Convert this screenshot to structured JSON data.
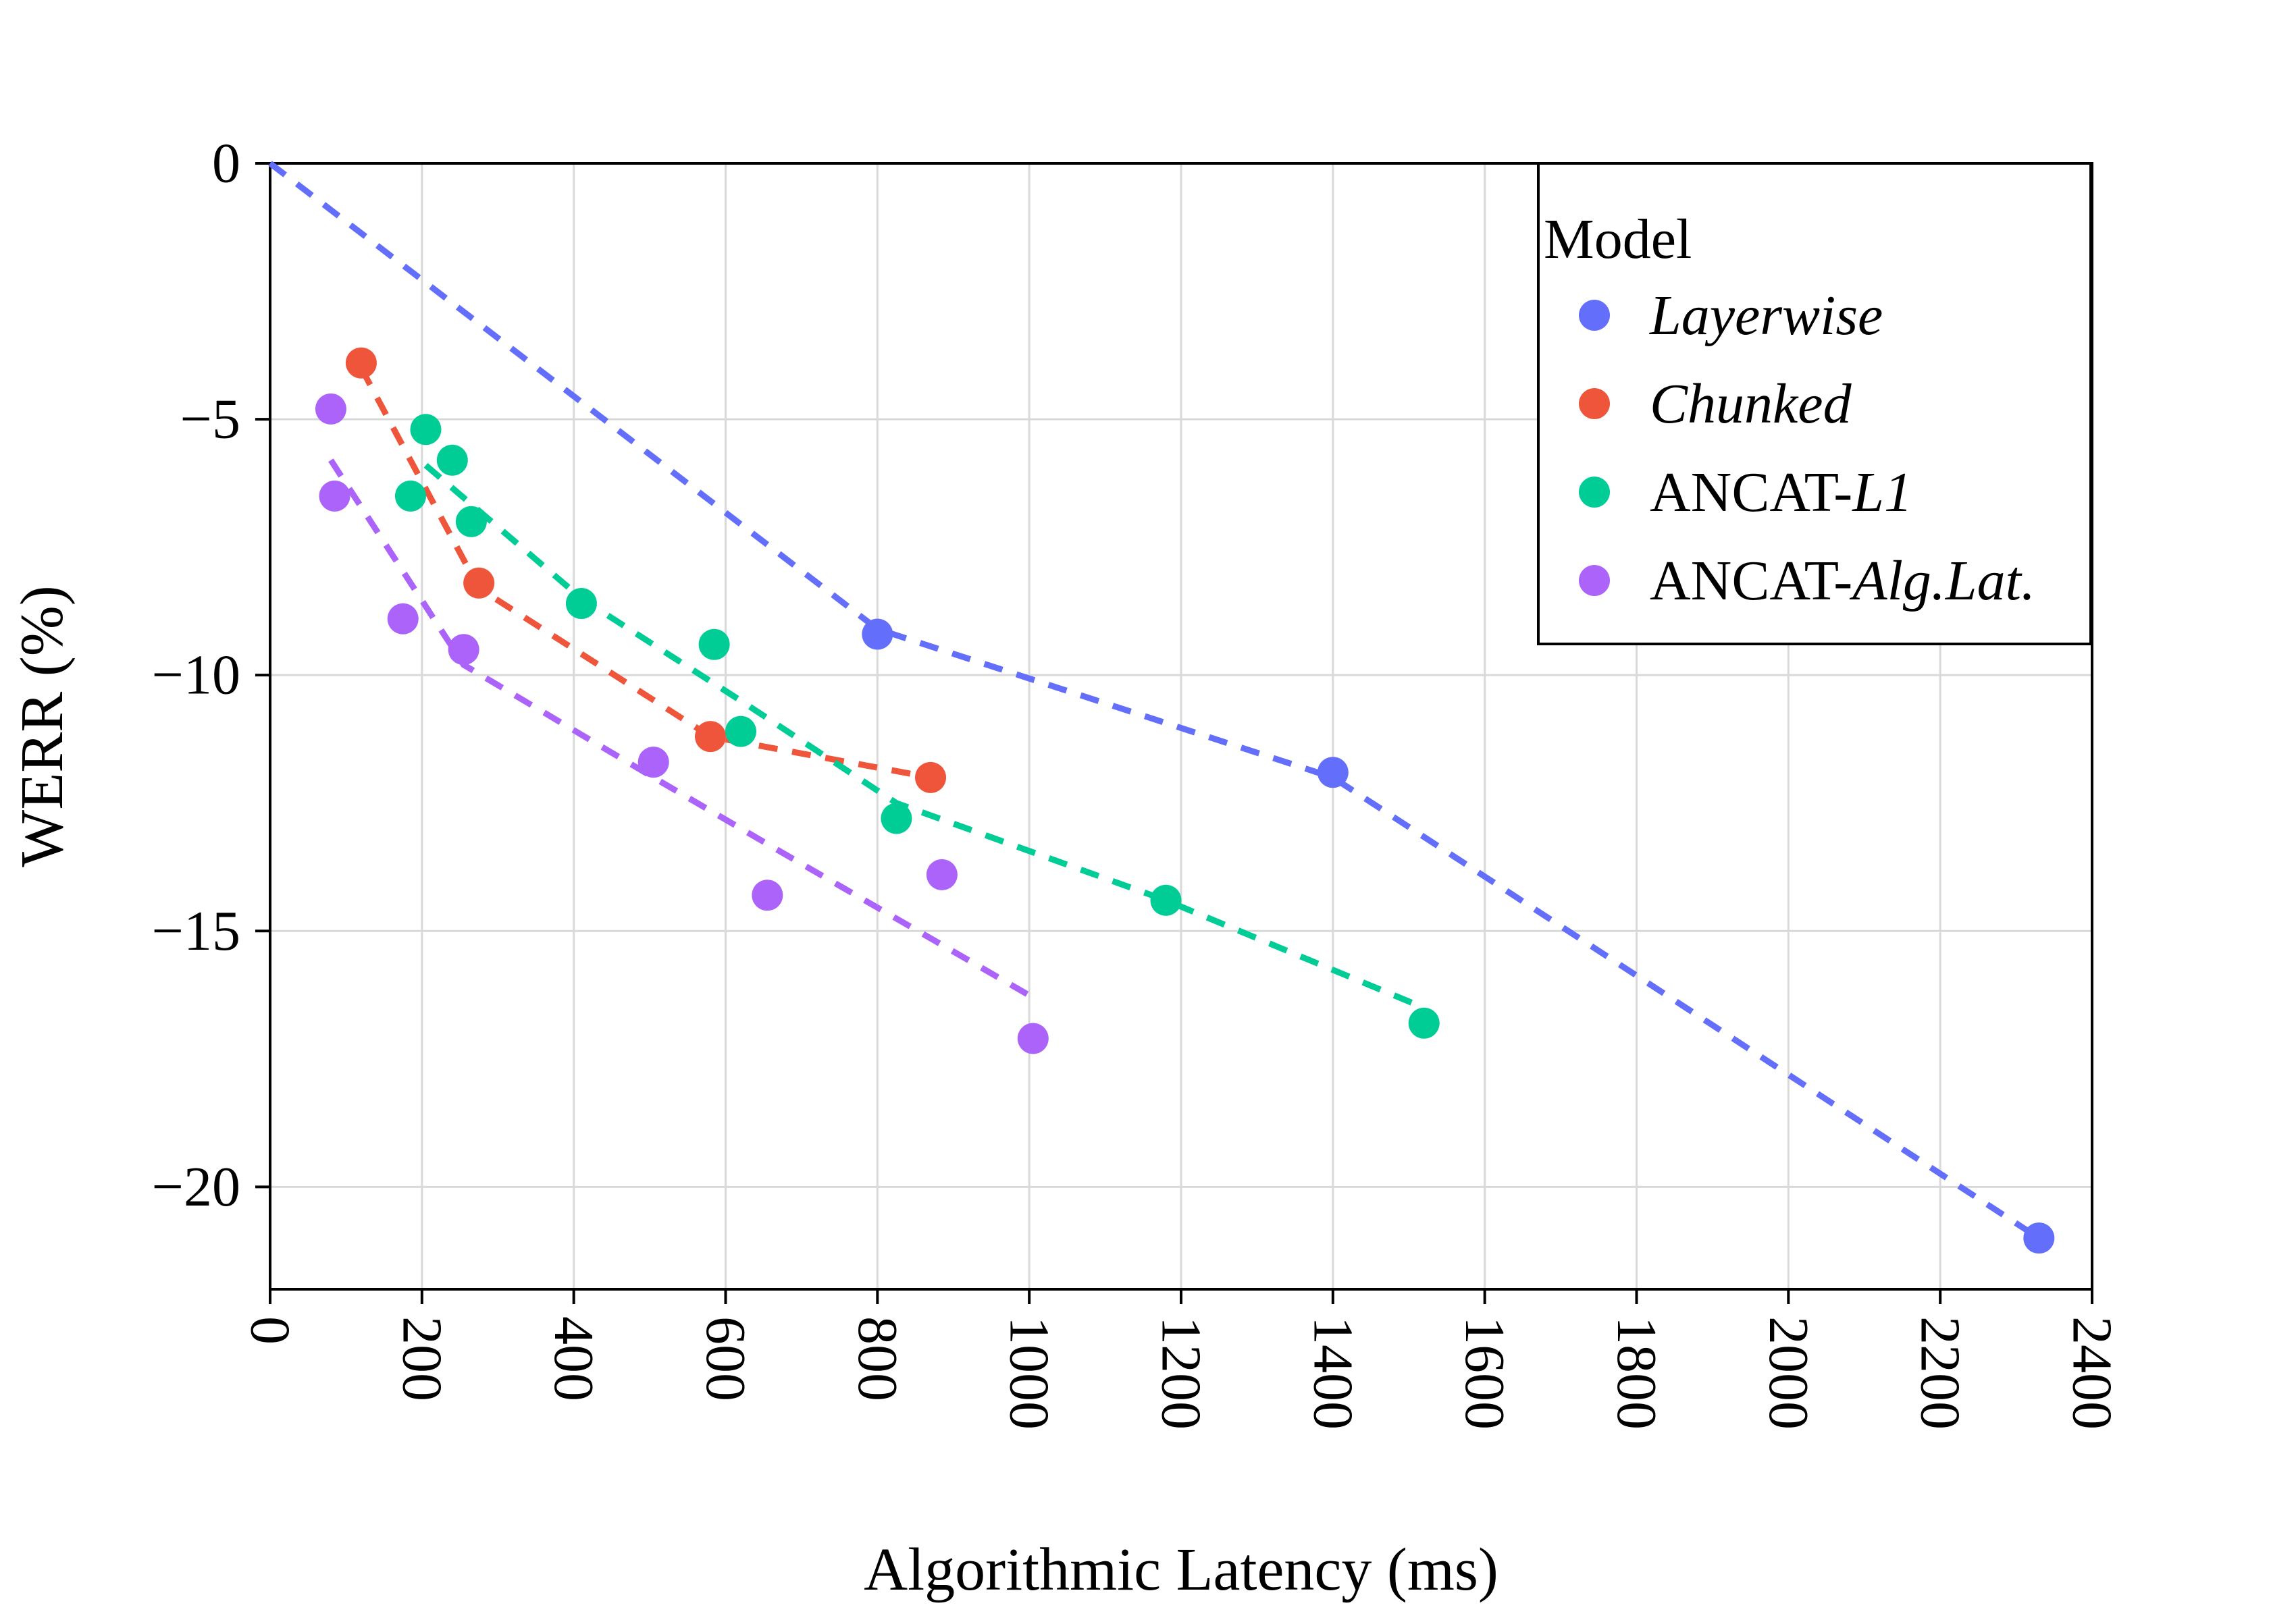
{
  "chart_data": {
    "type": "scatter",
    "title": "",
    "xlabel": "Algorithmic Latency (ms)",
    "ylabel": "WERR (%)",
    "xlim": [
      0,
      2400
    ],
    "ylim": [
      -22,
      0
    ],
    "grid": true,
    "x_ticks": [
      0,
      200,
      400,
      600,
      800,
      1000,
      1200,
      1400,
      1600,
      1800,
      2000,
      2200,
      2400
    ],
    "y_ticks": [
      0,
      -5,
      -10,
      -15,
      -20
    ],
    "y_tick_labels": [
      "0",
      "−5",
      "−10",
      "−15",
      "−20"
    ],
    "legend": {
      "title": "Model",
      "placement": "top-right"
    },
    "series": [
      {
        "name": "Layerwise",
        "legend_prefix": "",
        "legend_italic": "Layerwise",
        "color": "#636efa",
        "points": [
          [
            800,
            -9.2
          ],
          [
            1400,
            -11.9
          ],
          [
            2330,
            -21.0
          ]
        ],
        "trend": [
          [
            0,
            0
          ],
          [
            800,
            -9.1
          ],
          [
            1400,
            -12.0
          ],
          [
            2330,
            -21.0
          ]
        ]
      },
      {
        "name": "Chunked",
        "legend_prefix": "",
        "legend_italic": "Chunked",
        "color": "#ef553b",
        "points": [
          [
            120,
            -3.9
          ],
          [
            275,
            -8.2
          ],
          [
            580,
            -11.2
          ],
          [
            870,
            -12.0
          ]
        ],
        "trend": [
          [
            120,
            -4.0
          ],
          [
            275,
            -8.3
          ],
          [
            580,
            -11.2
          ],
          [
            870,
            -12.0
          ]
        ]
      },
      {
        "name": "ANCAT-L1",
        "legend_prefix": "ANCAT-",
        "legend_italic": "L1",
        "color": "#00cc96",
        "points": [
          [
            205,
            -5.2
          ],
          [
            185,
            -6.5
          ],
          [
            240,
            -5.8
          ],
          [
            265,
            -7.0
          ],
          [
            410,
            -8.6
          ],
          [
            585,
            -9.4
          ],
          [
            620,
            -11.1
          ],
          [
            825,
            -12.8
          ],
          [
            1180,
            -14.4
          ],
          [
            1520,
            -16.8
          ]
        ],
        "trend": [
          [
            205,
            -5.9
          ],
          [
            410,
            -8.5
          ],
          [
            620,
            -10.5
          ],
          [
            825,
            -12.5
          ],
          [
            1180,
            -14.4
          ],
          [
            1520,
            -16.5
          ]
        ]
      },
      {
        "name": "ANCAT-Alg.Lat.",
        "legend_prefix": "ANCAT-",
        "legend_italic": "Alg.Lat.",
        "color": "#ab63fa",
        "points": [
          [
            80,
            -4.8
          ],
          [
            85,
            -6.5
          ],
          [
            175,
            -8.9
          ],
          [
            255,
            -9.5
          ],
          [
            505,
            -11.7
          ],
          [
            655,
            -14.3
          ],
          [
            885,
            -13.9
          ],
          [
            1005,
            -17.1
          ]
        ],
        "trend": [
          [
            80,
            -5.8
          ],
          [
            255,
            -9.8
          ],
          [
            505,
            -12.0
          ],
          [
            655,
            -13.3
          ],
          [
            1005,
            -16.3
          ]
        ]
      }
    ]
  }
}
